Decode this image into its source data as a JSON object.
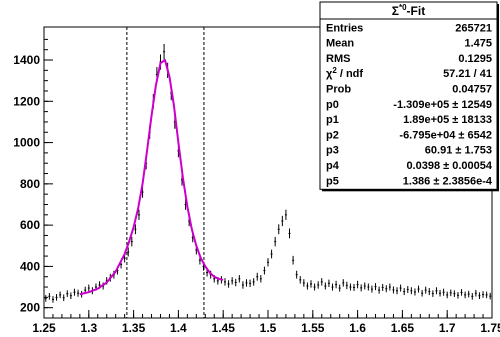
{
  "chart_data": {
    "type": "scatter",
    "title": "",
    "xlabel": "",
    "ylabel": "",
    "xlim": [
      1.25,
      1.75
    ],
    "ylim": [
      150,
      1560
    ],
    "x_ticks": [
      "1.25",
      "1.3",
      "1.35",
      "1.4",
      "1.45",
      "1.5",
      "1.55",
      "1.6",
      "1.65",
      "1.7",
      "1.75"
    ],
    "y_ticks": [
      "200",
      "400",
      "600",
      "800",
      "1000",
      "1200",
      "1400"
    ],
    "vlines": [
      1.3425,
      1.4285
    ],
    "series": [
      {
        "kind": "histogram-errorbars",
        "x": [
          1.252,
          1.256,
          1.26,
          1.264,
          1.268,
          1.272,
          1.276,
          1.28,
          1.284,
          1.288,
          1.292,
          1.296,
          1.3,
          1.304,
          1.308,
          1.312,
          1.316,
          1.32,
          1.324,
          1.328,
          1.332,
          1.336,
          1.34,
          1.344,
          1.348,
          1.352,
          1.356,
          1.36,
          1.364,
          1.368,
          1.372,
          1.376,
          1.38,
          1.384,
          1.388,
          1.392,
          1.396,
          1.4,
          1.404,
          1.408,
          1.412,
          1.416,
          1.42,
          1.424,
          1.428,
          1.432,
          1.436,
          1.44,
          1.444,
          1.448,
          1.452,
          1.456,
          1.46,
          1.464,
          1.468,
          1.472,
          1.476,
          1.48,
          1.484,
          1.488,
          1.492,
          1.496,
          1.5,
          1.504,
          1.508,
          1.512,
          1.516,
          1.52,
          1.524,
          1.528,
          1.532,
          1.536,
          1.54,
          1.544,
          1.548,
          1.552,
          1.556,
          1.56,
          1.564,
          1.568,
          1.572,
          1.576,
          1.58,
          1.584,
          1.588,
          1.592,
          1.596,
          1.6,
          1.604,
          1.608,
          1.612,
          1.616,
          1.62,
          1.624,
          1.628,
          1.632,
          1.636,
          1.64,
          1.644,
          1.648,
          1.652,
          1.656,
          1.66,
          1.664,
          1.668,
          1.672,
          1.676,
          1.68,
          1.684,
          1.688,
          1.692,
          1.696,
          1.7,
          1.704,
          1.708,
          1.712,
          1.716,
          1.72,
          1.724,
          1.728,
          1.732,
          1.736,
          1.74,
          1.744,
          1.748
        ],
        "y": [
          245,
          255,
          240,
          250,
          262,
          248,
          268,
          258,
          275,
          270,
          265,
          285,
          295,
          282,
          300,
          310,
          305,
          330,
          345,
          360,
          380,
          410,
          440,
          470,
          520,
          580,
          650,
          760,
          900,
          1050,
          1200,
          1330,
          1390,
          1440,
          1350,
          1240,
          1100,
          960,
          820,
          700,
          620,
          540,
          480,
          430,
          400,
          370,
          360,
          340,
          330,
          335,
          325,
          315,
          330,
          322,
          340,
          310,
          320,
          318,
          325,
          350,
          340,
          380,
          420,
          460,
          520,
          580,
          620,
          650,
          560,
          430,
          360,
          335,
          320,
          305,
          315,
          300,
          310,
          325,
          305,
          318,
          300,
          312,
          295,
          320,
          308,
          300,
          298,
          312,
          296,
          305,
          300,
          290,
          302,
          285,
          298,
          292,
          300,
          286,
          282,
          295,
          278,
          288,
          282,
          276,
          290,
          270,
          285,
          278,
          268,
          282,
          270,
          275,
          262,
          272,
          268,
          260,
          274,
          262,
          266,
          255,
          270,
          258,
          264,
          262,
          256
        ],
        "err": [
          16,
          16,
          16,
          16,
          16,
          16,
          16,
          16,
          17,
          17,
          16,
          17,
          17,
          17,
          17,
          18,
          17,
          18,
          19,
          19,
          19,
          20,
          21,
          22,
          23,
          24,
          25,
          27,
          30,
          32,
          35,
          36,
          37,
          38,
          37,
          35,
          33,
          31,
          29,
          26,
          25,
          23,
          22,
          21,
          20,
          19,
          19,
          18,
          18,
          18,
          18,
          18,
          18,
          18,
          18,
          18,
          18,
          18,
          18,
          19,
          18,
          19,
          20,
          21,
          23,
          24,
          25,
          25,
          24,
          21,
          19,
          18,
          18,
          17,
          18,
          17,
          18,
          18,
          17,
          18,
          17,
          18,
          17,
          18,
          18,
          17,
          17,
          18,
          17,
          17,
          17,
          17,
          17,
          17,
          17,
          17,
          17,
          17,
          17,
          17,
          17,
          17,
          17,
          17,
          17,
          16,
          17,
          17,
          16,
          17,
          16,
          17,
          16,
          16,
          16,
          16,
          16,
          16,
          16,
          16,
          16,
          16,
          16,
          16,
          16
        ]
      },
      {
        "kind": "fit-curve",
        "x": [
          1.29,
          1.3,
          1.31,
          1.32,
          1.33,
          1.34,
          1.345,
          1.35,
          1.355,
          1.36,
          1.365,
          1.37,
          1.375,
          1.38,
          1.385,
          1.39,
          1.395,
          1.4,
          1.405,
          1.41,
          1.415,
          1.42,
          1.425,
          1.43,
          1.435,
          1.44,
          1.445,
          1.45
        ],
        "y": [
          265,
          275,
          292,
          322,
          375,
          460,
          520,
          590,
          680,
          800,
          960,
          1130,
          1280,
          1385,
          1400,
          1320,
          1180,
          1000,
          830,
          690,
          580,
          500,
          440,
          400,
          370,
          350,
          340,
          335
        ]
      }
    ],
    "colors": {
      "points": "#000000",
      "fit": "#cc00cc",
      "vline": "#000000"
    },
    "stats_box": {
      "title_sigma": "Σ",
      "title_sup": "*0",
      "title_rest": "-Fit",
      "rows": [
        {
          "label": "Entries",
          "value": "265721"
        },
        {
          "label": "Mean",
          "value": "1.475"
        },
        {
          "label": "RMS",
          "value": "0.1295"
        },
        {
          "label": "χ",
          "label_sup": "2",
          "label_rest": " / ndf",
          "value": "57.21 / 41"
        },
        {
          "label": "Prob",
          "value": "0.04757"
        },
        {
          "label": "p0",
          "value": "-1.309e+05 ± 12549"
        },
        {
          "label": "p1",
          "value": "1.89e+05 ± 18133"
        },
        {
          "label": "p2",
          "value": "-6.795e+04 ± 6542"
        },
        {
          "label": "p3",
          "value": "60.91 ± 1.753"
        },
        {
          "label": "p4",
          "value": "0.0398 ± 0.00054"
        },
        {
          "label": "p5",
          "value": "1.386 ± 2.3856e-4"
        }
      ]
    }
  }
}
